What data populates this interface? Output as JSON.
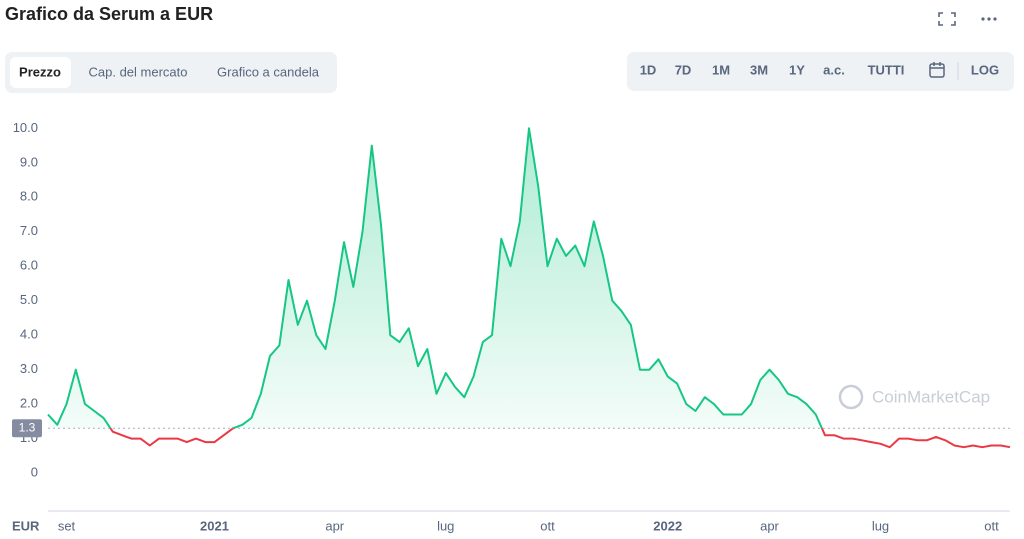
{
  "header": {
    "title": "Grafico da Serum a EUR",
    "tabs": [
      "Prezzo",
      "Cap. del mercato",
      "Grafico a candela"
    ],
    "ranges": [
      "1D",
      "7D",
      "1M",
      "3M",
      "1Y",
      "a.c.",
      "TUTTI"
    ],
    "log": "LOG"
  },
  "chart_data": {
    "type": "line",
    "y_label": "EUR",
    "watermark": "CoinMarketCap",
    "categories": [
      null,
      null,
      "set",
      null,
      null,
      null,
      null,
      null,
      null,
      null,
      null,
      null,
      null,
      null,
      null,
      null,
      null,
      null,
      "2021",
      null,
      null,
      null,
      null,
      null,
      null,
      null,
      null,
      null,
      null,
      null,
      null,
      "apr",
      null,
      null,
      null,
      null,
      null,
      null,
      null,
      null,
      null,
      null,
      null,
      "lug",
      null,
      null,
      null,
      null,
      null,
      null,
      null,
      null,
      null,
      null,
      "ott",
      null,
      null,
      null,
      null,
      null,
      null,
      null,
      null,
      null,
      null,
      null,
      null,
      "2022",
      null,
      null,
      null,
      null,
      null,
      null,
      null,
      null,
      null,
      null,
      "apr",
      null,
      null,
      null,
      null,
      null,
      null,
      null,
      null,
      null,
      null,
      null,
      "lug",
      null,
      null,
      null,
      null,
      null,
      null,
      null,
      null,
      null,
      null,
      null,
      "ott",
      null,
      null
    ],
    "values": [
      1.7,
      1.4,
      2.0,
      3.0,
      2.0,
      1.8,
      1.6,
      1.2,
      1.1,
      1.0,
      1.0,
      0.8,
      1.0,
      1.0,
      1.0,
      0.9,
      1.0,
      0.9,
      0.9,
      1.1,
      1.3,
      1.4,
      1.6,
      2.3,
      3.4,
      3.7,
      5.6,
      4.3,
      5.0,
      4.0,
      3.6,
      5.0,
      6.7,
      5.4,
      7.0,
      9.5,
      7.2,
      4.0,
      3.8,
      4.2,
      3.1,
      3.6,
      2.3,
      2.9,
      2.5,
      2.2,
      2.8,
      3.8,
      4.0,
      6.8,
      6.0,
      7.3,
      10.0,
      8.3,
      6.0,
      6.8,
      6.3,
      6.6,
      6.0,
      7.3,
      6.3,
      5.0,
      4.7,
      4.3,
      3.0,
      3.0,
      3.3,
      2.8,
      2.6,
      2.0,
      1.8,
      2.2,
      2.0,
      1.7,
      1.7,
      1.7,
      2.0,
      2.7,
      3.0,
      2.7,
      2.3,
      2.2,
      2.0,
      1.7,
      1.1,
      1.1,
      1.0,
      1.0,
      0.95,
      0.9,
      0.85,
      0.75,
      1.0,
      1.0,
      0.95,
      0.95,
      1.05,
      0.95,
      0.8,
      0.75,
      0.8,
      0.75,
      0.8,
      0.8,
      0.75
    ],
    "baseline": 1.3,
    "up_color": "#16c784",
    "down_color": "#ea3943",
    "ylim": [
      -1.1,
      10.3
    ],
    "yticks": [
      0,
      {
        "value": 1,
        "label": "1.0"
      },
      {
        "value": 2,
        "label": "2.0"
      },
      {
        "value": 3,
        "label": "3.0"
      },
      {
        "value": 4,
        "label": "4.0"
      },
      {
        "value": 5,
        "label": "5.0"
      },
      {
        "value": 6,
        "label": "6.0"
      },
      {
        "value": 7,
        "label": "7.0"
      },
      {
        "value": 8,
        "label": "8.0"
      },
      {
        "value": 9,
        "label": "9.0"
      },
      {
        "value": 10,
        "label": "10.0"
      }
    ]
  }
}
